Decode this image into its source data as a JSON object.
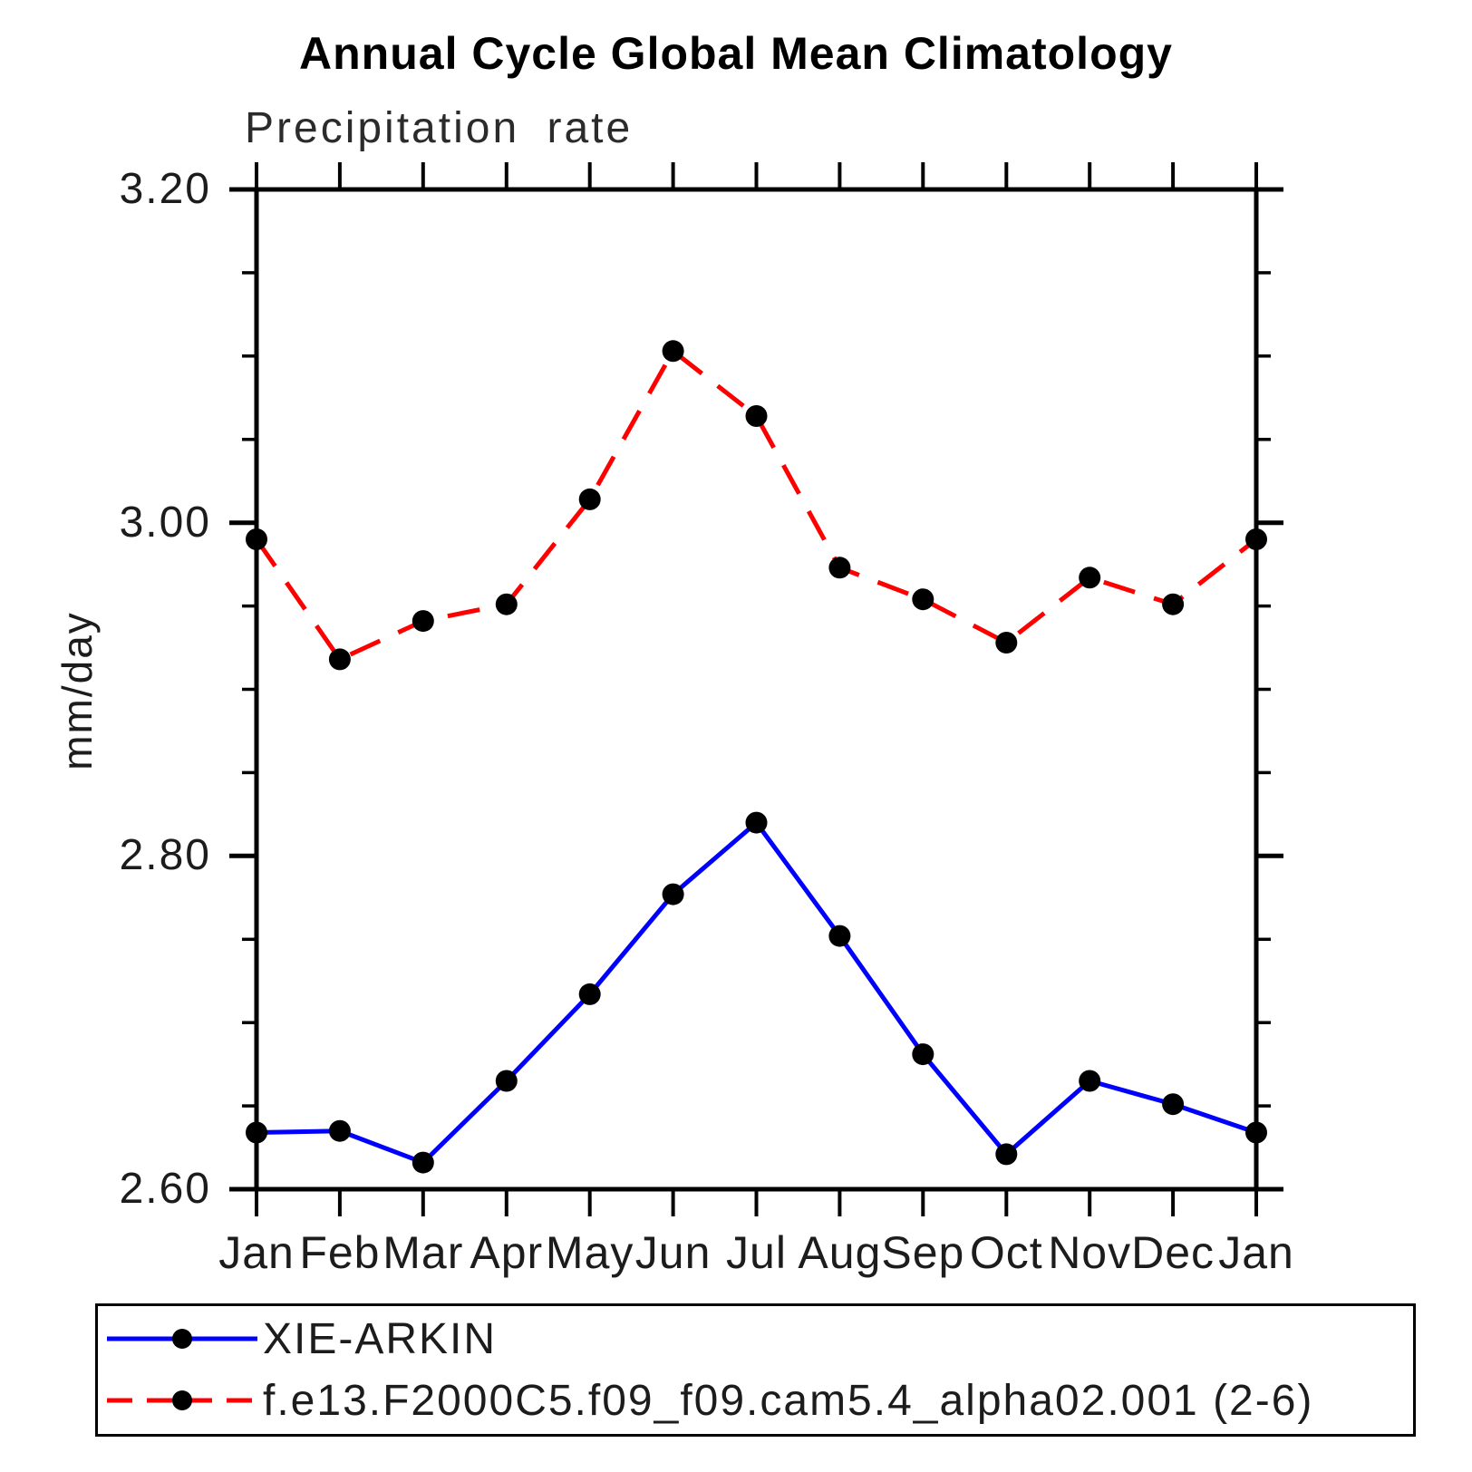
{
  "chart_data": {
    "type": "line",
    "title": "Annual Cycle Global Mean Climatology",
    "subtitle": "Precipitation rate",
    "ylabel": "mm/day",
    "xlabel": "",
    "categories": [
      "Jan",
      "Feb",
      "Mar",
      "Apr",
      "May",
      "Jun",
      "Jul",
      "Aug",
      "Sep",
      "Oct",
      "Nov",
      "Dec",
      "Jan"
    ],
    "ylim": [
      2.6,
      3.2
    ],
    "ytick_values": [
      2.6,
      2.8,
      3.0,
      3.2
    ],
    "ytick_labels": [
      "2.60",
      "2.80",
      "3.00",
      "3.20"
    ],
    "ytick_minor_step": 0.05,
    "grid": false,
    "legend_position": "bottom-left",
    "axis_color": "#000000",
    "marker": "filled-circle",
    "marker_color": "#000000",
    "series": [
      {
        "name": "XIE-ARKIN",
        "color": "#0000ff",
        "line_style": "solid",
        "values": [
          2.634,
          2.635,
          2.616,
          2.665,
          2.717,
          2.777,
          2.82,
          2.752,
          2.681,
          2.621,
          2.665,
          2.651,
          2.634
        ]
      },
      {
        "name": "f.e13.F2000C5.f09_f09.cam5.4_alpha02.001 (2-6)",
        "color": "#ff0000",
        "line_style": "dashed",
        "values": [
          2.99,
          2.918,
          2.941,
          2.951,
          3.014,
          3.103,
          3.064,
          2.973,
          2.954,
          2.928,
          2.967,
          2.951,
          2.99
        ]
      }
    ]
  }
}
